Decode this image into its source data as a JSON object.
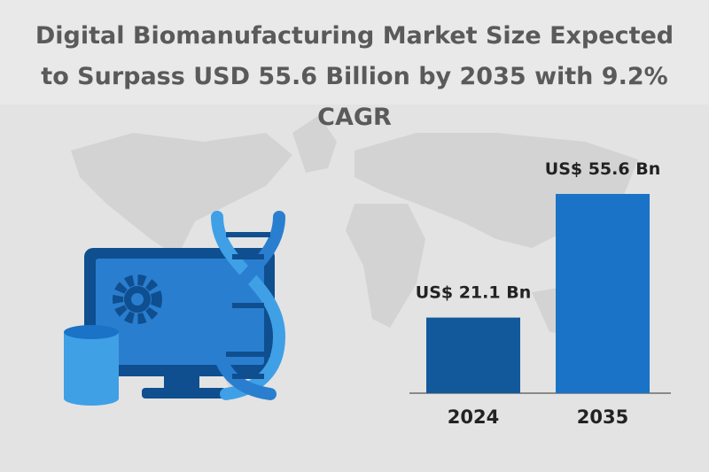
{
  "chart_data": {
    "type": "bar",
    "title": "Digital Biomanufacturing Market Size Expected to Surpass USD 55.6 Billion by 2035 with 9.2% CAGR",
    "categories": [
      "2024",
      "2035"
    ],
    "values": [
      21.1,
      55.6
    ],
    "value_labels": [
      "US$ 21.1 Bn",
      "US$ 55.6 Bn"
    ],
    "colors": [
      "#12599c",
      "#1a73c6"
    ]
  }
}
